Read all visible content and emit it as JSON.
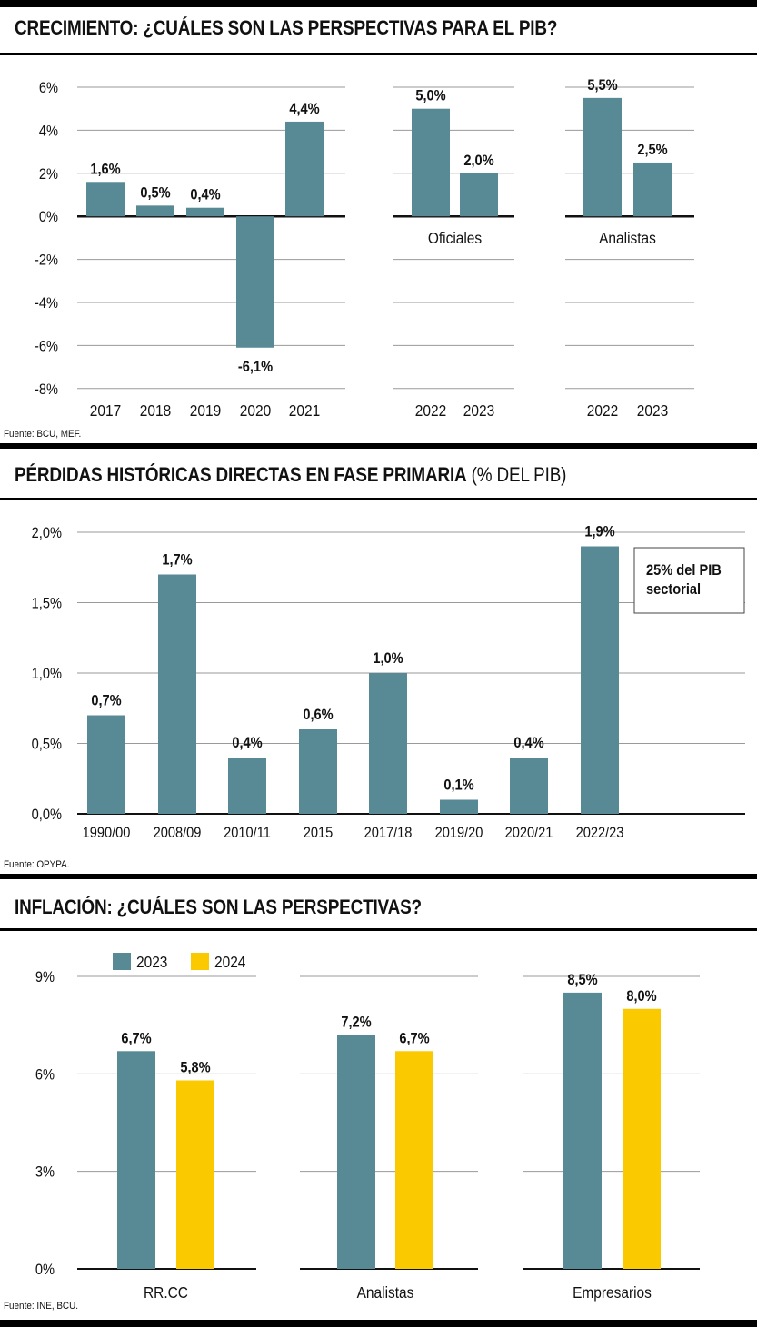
{
  "panels": [
    {
      "title": "CRECIMIENTO: ¿CUÁLES SON LAS PERSPECTIVAS PARA EL PIB?",
      "title_suffix": "",
      "source": "Fuente: BCU, MEF."
    },
    {
      "title": "PÉRDIDAS HISTÓRICAS DIRECTAS EN FASE PRIMARIA",
      "title_suffix": " (% DEL PIB)",
      "source": "Fuente: OPYPA."
    },
    {
      "title": "INFLACIÓN: ¿CUÁLES SON LAS PERSPECTIVAS?",
      "title_suffix": "",
      "source": "Fuente: INE, BCU."
    }
  ],
  "colors": {
    "teal": "#588a96",
    "yellow": "#fbc900",
    "grid": "#9a9a9a",
    "text": "#111111"
  },
  "chart_data": [
    {
      "type": "bar",
      "groups": [
        {
          "label": "",
          "categories": [
            "2017",
            "2018",
            "2019",
            "2020",
            "2021"
          ],
          "values": [
            1.6,
            0.5,
            0.4,
            -6.1,
            4.4
          ],
          "value_labels": [
            "1,6%",
            "0,5%",
            "0,4%",
            "-6,1%",
            "4,4%"
          ]
        },
        {
          "label": "Oficiales",
          "categories": [
            "2022",
            "2023"
          ],
          "values": [
            5.0,
            2.0
          ],
          "value_labels": [
            "5,0%",
            "2,0%"
          ]
        },
        {
          "label": "Analistas",
          "categories": [
            "2022",
            "2023"
          ],
          "values": [
            5.5,
            2.5
          ],
          "value_labels": [
            "5,5%",
            "2,5%"
          ]
        }
      ],
      "ylim": [
        -8,
        6
      ],
      "yticks": [
        6,
        4,
        2,
        0,
        -2,
        -4,
        -6,
        -8
      ],
      "ytick_labels": [
        "6%",
        "4%",
        "2%",
        "0%",
        "-2%",
        "-4%",
        "-6%",
        "-8%"
      ],
      "grid": true
    },
    {
      "type": "bar",
      "categories": [
        "1990/00",
        "2008/09",
        "2010/11",
        "2015",
        "2017/18",
        "2019/20",
        "2020/21",
        "2022/23"
      ],
      "values": [
        0.7,
        1.7,
        0.4,
        0.6,
        1.0,
        0.1,
        0.4,
        1.9
      ],
      "value_labels": [
        "0,7%",
        "1,7%",
        "0,4%",
        "0,6%",
        "1,0%",
        "0,1%",
        "0,4%",
        "1,9%"
      ],
      "ylim": [
        0,
        2.0
      ],
      "yticks": [
        2.0,
        1.5,
        1.0,
        0.5,
        0.0
      ],
      "ytick_labels": [
        "2,0%",
        "1,5%",
        "1,0%",
        "0,5%",
        "0,0%"
      ],
      "annotation": [
        "25% del PIB",
        "sectorial"
      ],
      "grid": true
    },
    {
      "type": "bar",
      "categories": [
        "RR.CC",
        "Analistas",
        "Empresarios"
      ],
      "series": [
        {
          "name": "2023",
          "values": [
            6.7,
            7.2,
            8.5
          ],
          "value_labels": [
            "6,7%",
            "7,2%",
            "8,5%"
          ]
        },
        {
          "name": "2024",
          "values": [
            5.8,
            6.7,
            8.0
          ],
          "value_labels": [
            "5,8%",
            "6,7%",
            "8,0%"
          ]
        }
      ],
      "ylim": [
        0,
        9
      ],
      "yticks": [
        9,
        6,
        3,
        0
      ],
      "ytick_labels": [
        "9%",
        "6%",
        "3%",
        "0%"
      ],
      "legend": "top-left",
      "grid": true
    }
  ]
}
